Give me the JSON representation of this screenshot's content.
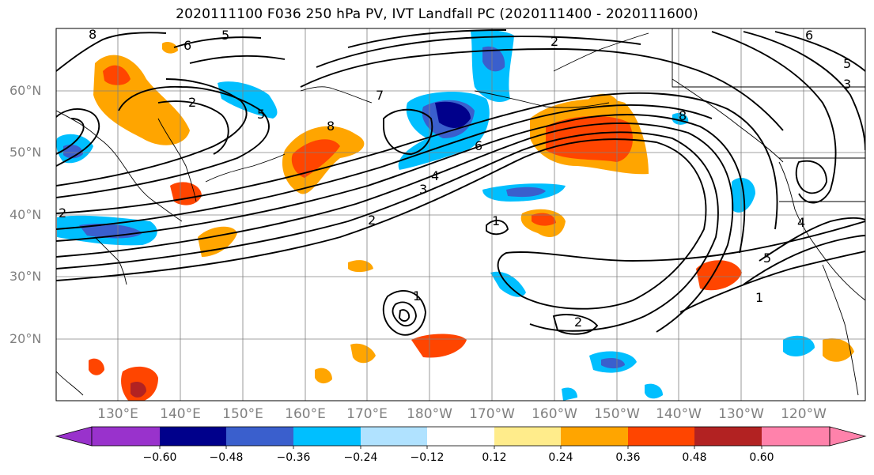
{
  "title": "2020111100 F036 250 hPa PV, IVT Landfall PC (2020111400 - 2020111600)",
  "lat_labels": [
    "60°N",
    "50°N",
    "40°N",
    "30°N",
    "20°N"
  ],
  "lon_labels": [
    "130°E",
    "140°E",
    "150°E",
    "160°E",
    "170°E",
    "180°W",
    "170°W",
    "160°W",
    "150°W",
    "140°W",
    "130°W",
    "120°W"
  ],
  "colorbar": {
    "ticks": [
      "−0.60",
      "−0.48",
      "−0.36",
      "−0.24",
      "−0.12",
      "0.12",
      "0.24",
      "0.36",
      "0.48",
      "0.60"
    ],
    "colors": [
      "#9932cc",
      "#00008b",
      "#3a5fcd",
      "#00bfff",
      "#b0e2ff",
      "#ffffff",
      "#ffec8b",
      "#ffa500",
      "#ff4500",
      "#b22222",
      "#ff82ab"
    ]
  },
  "contour_labels": [
    "8",
    "6",
    "5",
    "2",
    "2",
    "5",
    "7",
    "8",
    "6",
    "4",
    "3",
    "2",
    "1",
    "8",
    "4",
    "5",
    "1",
    "2",
    "1",
    "6",
    "5",
    "3",
    "2"
  ]
}
